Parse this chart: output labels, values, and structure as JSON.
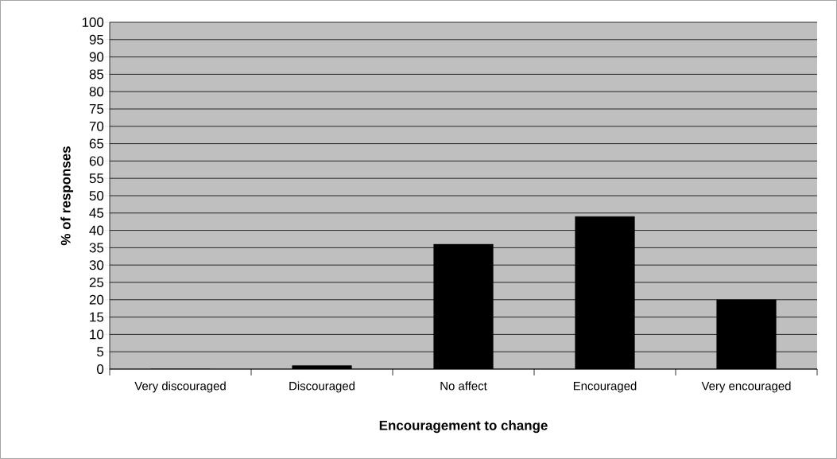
{
  "chart_data": {
    "type": "bar",
    "xlabel": "Encouragement to change",
    "ylabel": "% of responses",
    "categories": [
      "Very discouraged",
      "Discouraged",
      "No affect",
      "Encouraged",
      "Very encouraged"
    ],
    "values": [
      0,
      1,
      36,
      44,
      20
    ],
    "color": "#000000",
    "ylim": [
      0,
      100
    ],
    "yticks": [
      0,
      5,
      10,
      15,
      20,
      25,
      30,
      35,
      40,
      45,
      50,
      55,
      60,
      65,
      70,
      75,
      80,
      85,
      90,
      95,
      100
    ],
    "grid": "y"
  }
}
